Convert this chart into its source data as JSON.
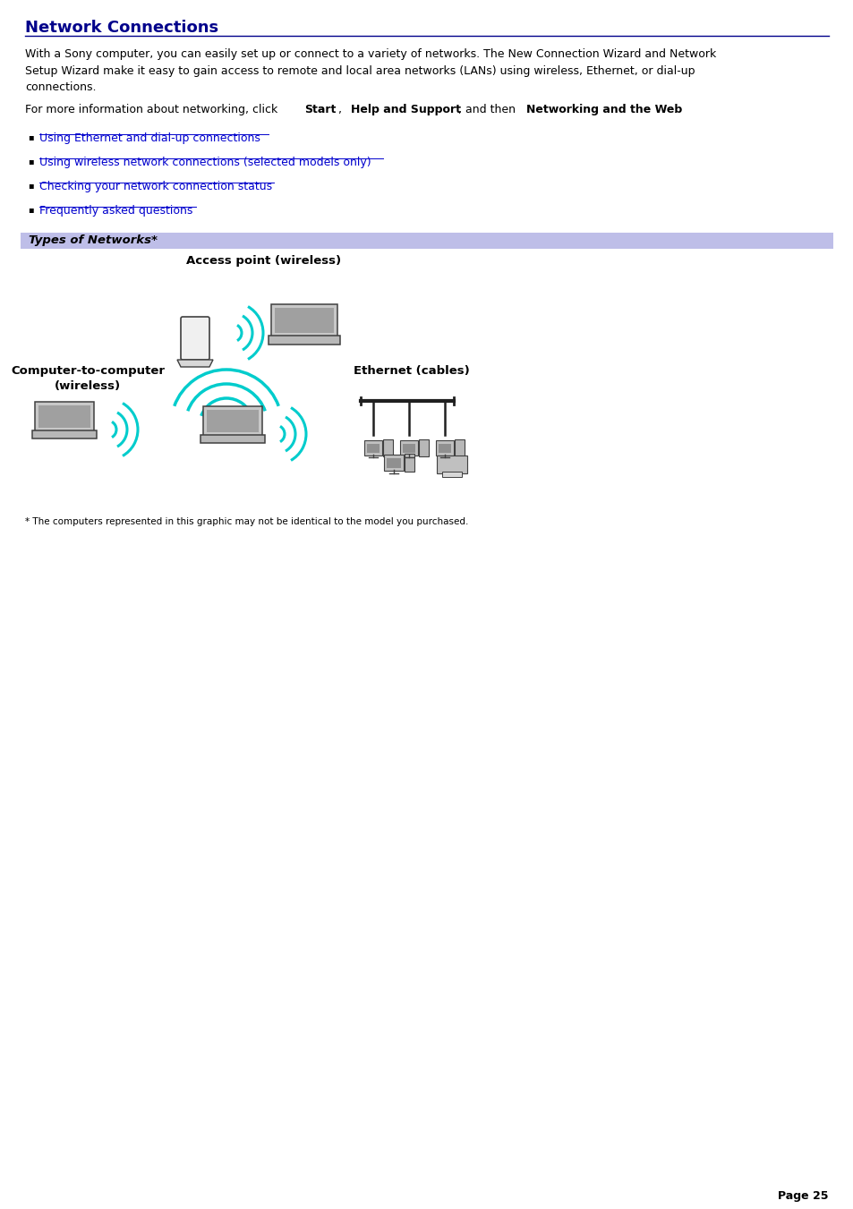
{
  "title": "Network Connections",
  "title_color": "#00008B",
  "separator_color": "#00008B",
  "body_text1": "With a Sony computer, you can easily set up or connect to a variety of networks. The New Connection Wizard and Network\nSetup Wizard make it easy to gain access to remote and local area networks (LANs) using wireless, Ethernet, or dial-up\nconnections.",
  "body_text2_parts": [
    {
      "text": "For more information about networking, click ",
      "bold": false
    },
    {
      "text": "Start",
      "bold": true
    },
    {
      "text": ", ",
      "bold": false
    },
    {
      "text": "Help and Support",
      "bold": true
    },
    {
      "text": ", and then ",
      "bold": false
    },
    {
      "text": "Networking and the Web",
      "bold": true
    },
    {
      "text": ".",
      "bold": false
    }
  ],
  "bullet_links": [
    "Using Ethernet and dial-up connections",
    "Using wireless network connections (selected models only)",
    "Checking your network connection status",
    "Frequently asked questions"
  ],
  "link_color": "#0000CD",
  "types_header": "Types of Networks*",
  "types_header_bg": "#BEBEE8",
  "label_access_point": "Access point (wireless)",
  "label_c2c": "Computer-to-computer\n(wireless)",
  "label_ethernet": "Ethernet (cables)",
  "footnote": "* The computers represented in this graphic may not be identical to the model you purchased.",
  "page_number": "Page 25",
  "background_color": "#FFFFFF",
  "body_font_size": 9.0,
  "link_font_size": 9.0,
  "footnote_font_size": 7.5,
  "title_font_size": 13.0,
  "wireless_color": "#00CCCC",
  "device_edge_color": "#404040",
  "diagram_label_font_size": 9.5
}
